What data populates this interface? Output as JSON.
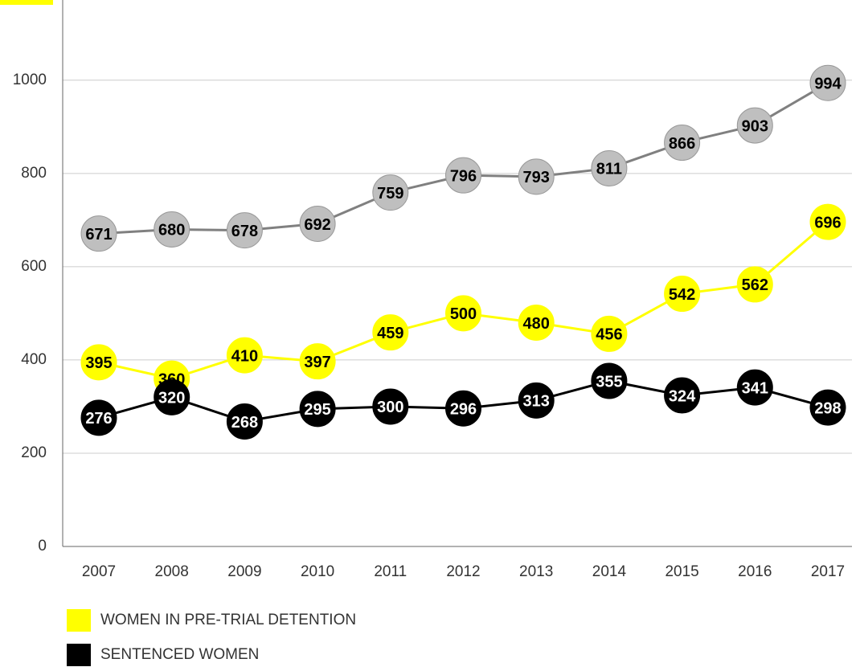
{
  "chart_data": {
    "type": "line",
    "categories": [
      "2007",
      "2008",
      "2009",
      "2010",
      "2011",
      "2012",
      "2013",
      "2014",
      "2015",
      "2016",
      "2017"
    ],
    "series": [
      {
        "color": "#bfbfbf",
        "line_color": "#808080",
        "values": [
          671,
          680,
          678,
          692,
          759,
          796,
          793,
          811,
          866,
          903,
          994
        ]
      },
      {
        "name": "WOMEN IN PRE-TRIAL DETENTION",
        "color": "#ffff00",
        "line_color": "#ffff00",
        "values": [
          395,
          360,
          410,
          397,
          459,
          500,
          480,
          456,
          542,
          562,
          696
        ]
      },
      {
        "name": "SENTENCED WOMEN",
        "color": "#000000",
        "line_color": "#000000",
        "values": [
          276,
          320,
          268,
          295,
          300,
          296,
          313,
          355,
          324,
          341,
          298
        ]
      }
    ],
    "ylim": [
      0,
      1172
    ],
    "yticks": [
      0,
      200,
      400,
      600,
      800,
      1000
    ],
    "grid": true,
    "legend": "bottom"
  }
}
